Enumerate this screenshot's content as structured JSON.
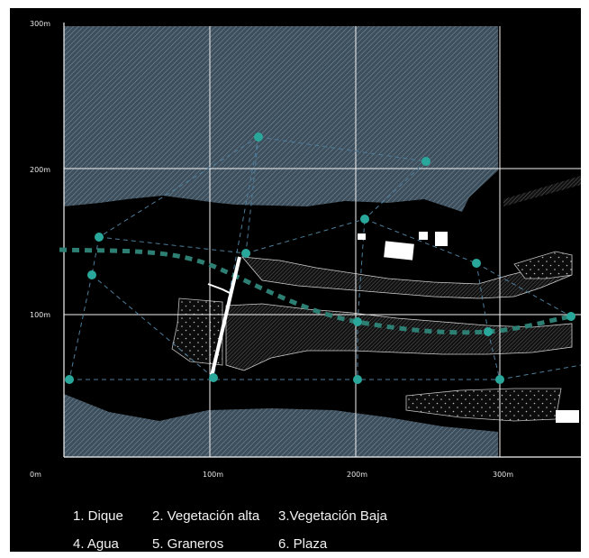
{
  "map": {
    "axis": {
      "x_labels": [
        "0m",
        "100m",
        "200m",
        "300m"
      ],
      "y_labels": [
        "300m",
        "200m",
        "100m"
      ]
    },
    "colors": {
      "background": "#000000",
      "hatch_area": "#4a5e6e",
      "grid": "#f4f4f4",
      "node": "#2aa79b",
      "water_path": "#2e7f73",
      "dike": "#ffffff"
    },
    "grid": true,
    "features": [
      "dike",
      "high-vegetation",
      "low-vegetation",
      "water",
      "granaries",
      "plaza"
    ]
  },
  "legend": {
    "items": [
      "1. Dique",
      "2. Vegetación alta",
      "3.Vegetación Baja",
      "4. Agua",
      "5. Graneros",
      "6. Plaza"
    ]
  }
}
